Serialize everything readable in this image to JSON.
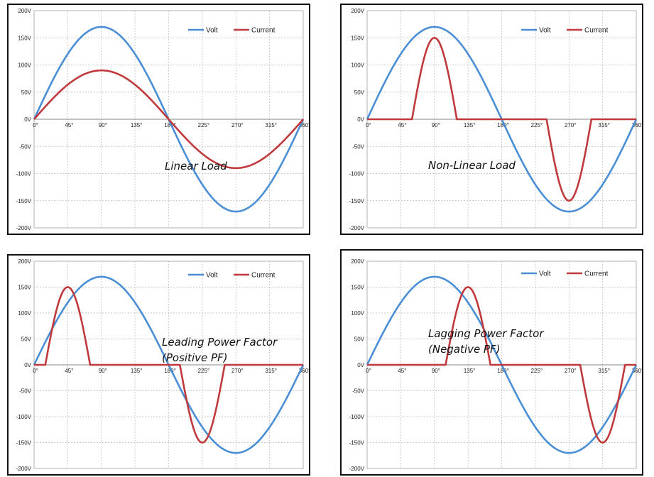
{
  "colors": {
    "volt": "#4a8fd6",
    "current": "#c0393c",
    "grid": "#b8b8b8",
    "frame": "#111111"
  },
  "chart_data": [
    {
      "type": "line",
      "title": "",
      "xlabel": "",
      "ylabel": "",
      "grid": true,
      "legend": "top-right",
      "annotation": [
        "Linear Load"
      ],
      "xlim": [
        0,
        360
      ],
      "ylim": [
        -200,
        200
      ],
      "x_ticks": [
        "0°",
        "45°",
        "90°",
        "135°",
        "180°",
        "225°",
        "270°",
        "315°",
        "360°"
      ],
      "y_ticks": [
        "200V",
        "150V",
        "100V",
        "50V",
        "0V",
        "-50V",
        "-100V",
        "-150V",
        "-200V"
      ],
      "series": [
        {
          "name": "Volt",
          "amplitude": 170,
          "phase_deg": 0,
          "shape": "sine"
        },
        {
          "name": "Current",
          "amplitude": 90,
          "phase_deg": 0,
          "shape": "sine"
        }
      ]
    },
    {
      "type": "line",
      "title": "",
      "xlabel": "",
      "ylabel": "",
      "grid": true,
      "legend": "top-right",
      "annotation": [
        "Non-Linear Load"
      ],
      "xlim": [
        0,
        360
      ],
      "ylim": [
        -200,
        200
      ],
      "x_ticks": [
        "0°",
        "45°",
        "90°",
        "135°",
        "180°",
        "225°",
        "270°",
        "315°",
        "360°"
      ],
      "y_ticks": [
        "200V",
        "150V",
        "100V",
        "50V",
        "0V",
        "-50V",
        "-100V",
        "-150V",
        "-200V"
      ],
      "series": [
        {
          "name": "Volt",
          "amplitude": 170,
          "phase_deg": 0,
          "shape": "sine"
        },
        {
          "name": "Current",
          "amplitude": 150,
          "shape": "pulses",
          "pulses": [
            {
              "start": 60,
              "end": 120,
              "peak": 150
            },
            {
              "start": 240,
              "end": 300,
              "peak": -150
            }
          ]
        }
      ]
    },
    {
      "type": "line",
      "title": "",
      "xlabel": "",
      "ylabel": "",
      "grid": true,
      "legend": "top-right",
      "annotation": [
        "Leading Power Factor",
        "(Positive PF)"
      ],
      "xlim": [
        0,
        360
      ],
      "ylim": [
        -200,
        200
      ],
      "x_ticks": [
        "0°",
        "45°",
        "90°",
        "135°",
        "180°",
        "225°",
        "270°",
        "315°",
        "360°"
      ],
      "y_ticks": [
        "200V",
        "150V",
        "100V",
        "50V",
        "0V",
        "-50V",
        "-100V",
        "-150V",
        "-200V"
      ],
      "series": [
        {
          "name": "Volt",
          "amplitude": 170,
          "phase_deg": 0,
          "shape": "sine"
        },
        {
          "name": "Current",
          "amplitude": 150,
          "shape": "pulses",
          "pulses": [
            {
              "start": 15,
              "end": 75,
              "peak": 150
            },
            {
              "start": 195,
              "end": 255,
              "peak": -150
            }
          ]
        }
      ]
    },
    {
      "type": "line",
      "title": "",
      "xlabel": "",
      "ylabel": "",
      "grid": true,
      "legend": "top-right",
      "annotation": [
        "Lagging Power Factor",
        "(Negative PF)"
      ],
      "xlim": [
        0,
        360
      ],
      "ylim": [
        -200,
        200
      ],
      "x_ticks": [
        "0°",
        "45°",
        "90°",
        "135°",
        "180°",
        "225°",
        "270°",
        "315°",
        "360°"
      ],
      "y_ticks": [
        "200V",
        "150V",
        "100V",
        "50V",
        "0V",
        "-50V",
        "-100V",
        "-150V",
        "-200V"
      ],
      "series": [
        {
          "name": "Volt",
          "amplitude": 170,
          "phase_deg": 0,
          "shape": "sine"
        },
        {
          "name": "Current",
          "amplitude": 150,
          "shape": "pulses",
          "pulses": [
            {
              "start": 105,
              "end": 165,
              "peak": 150
            },
            {
              "start": 285,
              "end": 345,
              "peak": -150
            }
          ]
        }
      ]
    }
  ]
}
